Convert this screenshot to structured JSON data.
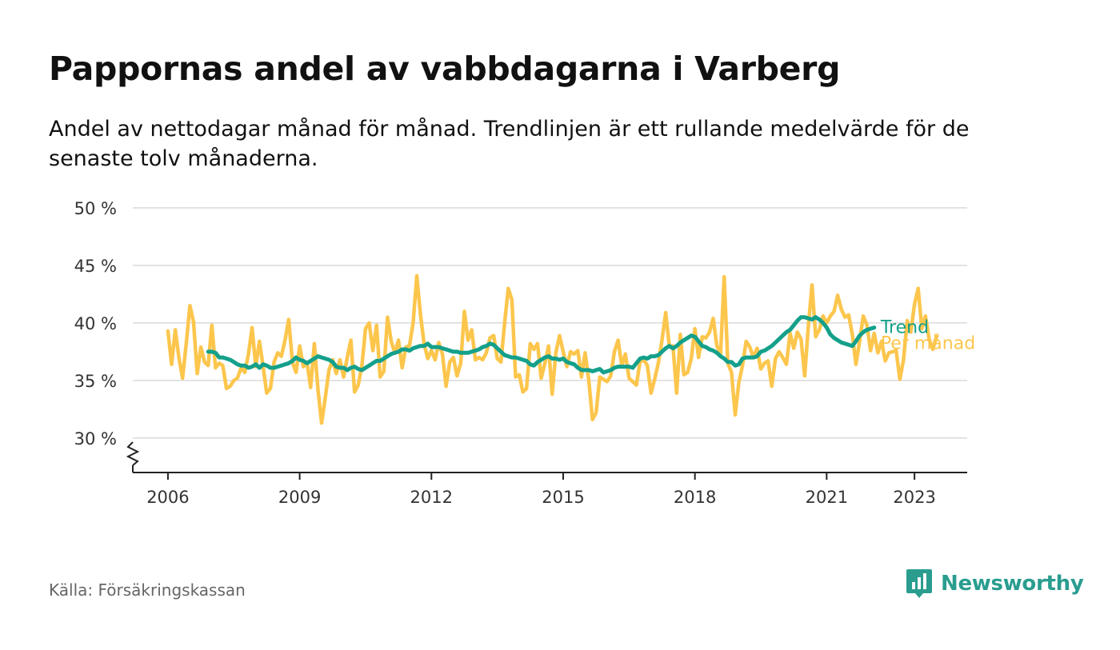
{
  "header": {
    "title": "Pappornas andel av vabbdagarna i Varberg",
    "subtitle": "Andel av nettodagar månad för månad. Trendlinjen är ett rullande medelvärde för de senaste tolv månaderna."
  },
  "footer": {
    "source": "Källa: Försäkringskassan",
    "brand": "Newsworthy"
  },
  "colors": {
    "monthly": "#fcc64d",
    "trend": "#14a08b",
    "grid": "#d9d9d9",
    "axis": "#222222",
    "brand": "#2a9d8f"
  },
  "chart_data": {
    "type": "line",
    "x_unit": "year (decimal)",
    "y_unit": "percent",
    "ylim": [
      27,
      50
    ],
    "xlim": [
      2005.2,
      2024.2
    ],
    "yticks": [
      30,
      35,
      40,
      45,
      50
    ],
    "ytick_labels": [
      "30 %",
      "35 %",
      "40 %",
      "45 %",
      "50 %"
    ],
    "xticks": [
      2006,
      2009,
      2012,
      2015,
      2018,
      2021,
      2023
    ],
    "xtick_labels": [
      "2006",
      "2009",
      "2012",
      "2015",
      "2018",
      "2021",
      "2023"
    ],
    "axis_break": true,
    "grid": true,
    "series": [
      {
        "name": "Per månad",
        "start": 2006.0,
        "step": 0.083333,
        "values": [
          39.3,
          36.4,
          39.4,
          37.0,
          35.2,
          38.2,
          41.5,
          40.1,
          35.6,
          37.9,
          36.6,
          36.3,
          39.8,
          36.1,
          36.5,
          36.3,
          34.3,
          34.5,
          35.0,
          35.2,
          36.1,
          35.7,
          37.3,
          39.6,
          36.2,
          38.4,
          36.2,
          33.9,
          34.3,
          36.6,
          37.4,
          37.1,
          38.5,
          40.3,
          36.6,
          35.7,
          38.0,
          36.2,
          36.6,
          34.4,
          38.2,
          34.2,
          31.3,
          33.5,
          35.9,
          36.8,
          35.6,
          36.8,
          35.3,
          37.0,
          38.5,
          34.0,
          34.6,
          36.3,
          39.5,
          40.0,
          37.6,
          39.8,
          35.3,
          35.8,
          40.5,
          38.4,
          37.4,
          38.5,
          36.1,
          37.9,
          38.0,
          40.0,
          44.1,
          40.7,
          38.2,
          36.9,
          37.6,
          36.8,
          38.3,
          37.3,
          34.5,
          36.6,
          37.0,
          35.4,
          36.5,
          41.0,
          38.5,
          39.4,
          36.8,
          37.0,
          36.8,
          37.4,
          38.7,
          38.9,
          36.9,
          36.6,
          40.0,
          43.0,
          42.0,
          35.3,
          35.5,
          34.0,
          34.3,
          38.2,
          37.7,
          38.2,
          35.2,
          36.5,
          38.0,
          33.8,
          37.4,
          38.9,
          37.5,
          36.2,
          37.5,
          37.3,
          37.6,
          35.3,
          37.4,
          35.0,
          31.6,
          32.2,
          35.3,
          35.1,
          34.9,
          35.4,
          37.5,
          38.5,
          36.3,
          37.3,
          35.2,
          34.9,
          34.6,
          36.6,
          36.8,
          36.3,
          33.9,
          35.1,
          36.5,
          38.5,
          40.9,
          38.0,
          38.0,
          33.9,
          39.0,
          35.5,
          35.7,
          36.9,
          39.5,
          37.0,
          38.8,
          38.7,
          39.2,
          40.4,
          38.0,
          37.3,
          44.0,
          36.5,
          35.7,
          32.0,
          34.8,
          36.3,
          38.4,
          37.9,
          37.0,
          37.8,
          36.0,
          36.5,
          36.7,
          34.5,
          36.9,
          37.5,
          37.0,
          36.4,
          39.1,
          37.8,
          39.2,
          38.6,
          35.4,
          39.8,
          43.3,
          38.8,
          39.4,
          40.6,
          40.0,
          40.6,
          41.0,
          42.4,
          41.2,
          40.5,
          40.7,
          39.0,
          36.4,
          38.4,
          40.6,
          39.8,
          37.6,
          39.1,
          37.4,
          38.4,
          36.7,
          37.4,
          37.5,
          37.6,
          35.1,
          36.8,
          40.2,
          39.2,
          41.6,
          43.0,
          39.5,
          40.6,
          38.6,
          37.7,
          38.8
        ]
      },
      {
        "name": "Trend",
        "start": 2006.917,
        "step": 0.083333,
        "values": [
          37.5,
          37.5,
          37.4,
          37.0,
          37.0,
          36.9,
          36.8,
          36.6,
          36.4,
          36.3,
          36.3,
          36.1,
          36.2,
          36.4,
          36.1,
          36.4,
          36.3,
          36.1,
          36.1,
          36.2,
          36.3,
          36.4,
          36.5,
          36.7,
          37.0,
          36.8,
          36.7,
          36.5,
          36.7,
          36.9,
          37.1,
          37.0,
          36.9,
          36.8,
          36.6,
          36.2,
          36.1,
          36.1,
          35.9,
          36.1,
          36.2,
          36.0,
          35.9,
          36.1,
          36.3,
          36.5,
          36.7,
          36.7,
          36.9,
          37.1,
          37.3,
          37.4,
          37.5,
          37.7,
          37.7,
          37.6,
          37.8,
          37.9,
          38.0,
          38.0,
          38.2,
          37.9,
          37.9,
          37.9,
          37.8,
          37.7,
          37.6,
          37.5,
          37.5,
          37.4,
          37.4,
          37.4,
          37.5,
          37.6,
          37.7,
          37.9,
          38.0,
          38.2,
          38.1,
          37.8,
          37.5,
          37.2,
          37.1,
          37.0,
          37.0,
          36.9,
          36.8,
          36.7,
          36.4,
          36.3,
          36.6,
          36.8,
          37.0,
          37.1,
          36.9,
          36.9,
          36.8,
          36.9,
          36.6,
          36.5,
          36.4,
          36.1,
          35.9,
          35.9,
          35.9,
          35.8,
          35.9,
          36.0,
          35.7,
          35.8,
          35.9,
          36.1,
          36.2,
          36.2,
          36.2,
          36.2,
          36.1,
          36.5,
          36.9,
          37.0,
          36.9,
          37.1,
          37.1,
          37.2,
          37.5,
          37.8,
          38.0,
          37.8,
          38.0,
          38.3,
          38.5,
          38.7,
          38.9,
          38.8,
          38.4,
          38.0,
          37.9,
          37.7,
          37.6,
          37.4,
          37.1,
          36.9,
          36.6,
          36.6,
          36.3,
          36.4,
          36.9,
          37.0,
          37.0,
          37.0,
          37.1,
          37.5,
          37.6,
          37.8,
          38.0,
          38.3,
          38.6,
          38.9,
          39.2,
          39.4,
          39.8,
          40.2,
          40.5,
          40.5,
          40.4,
          40.3,
          40.5,
          40.3,
          40.0,
          39.6,
          39.0,
          38.7,
          38.5,
          38.3,
          38.2,
          38.1,
          38.0,
          38.4,
          38.9,
          39.2,
          39.4,
          39.5,
          39.6
        ]
      }
    ],
    "series_labels": [
      "Trend",
      "Per månad"
    ]
  }
}
